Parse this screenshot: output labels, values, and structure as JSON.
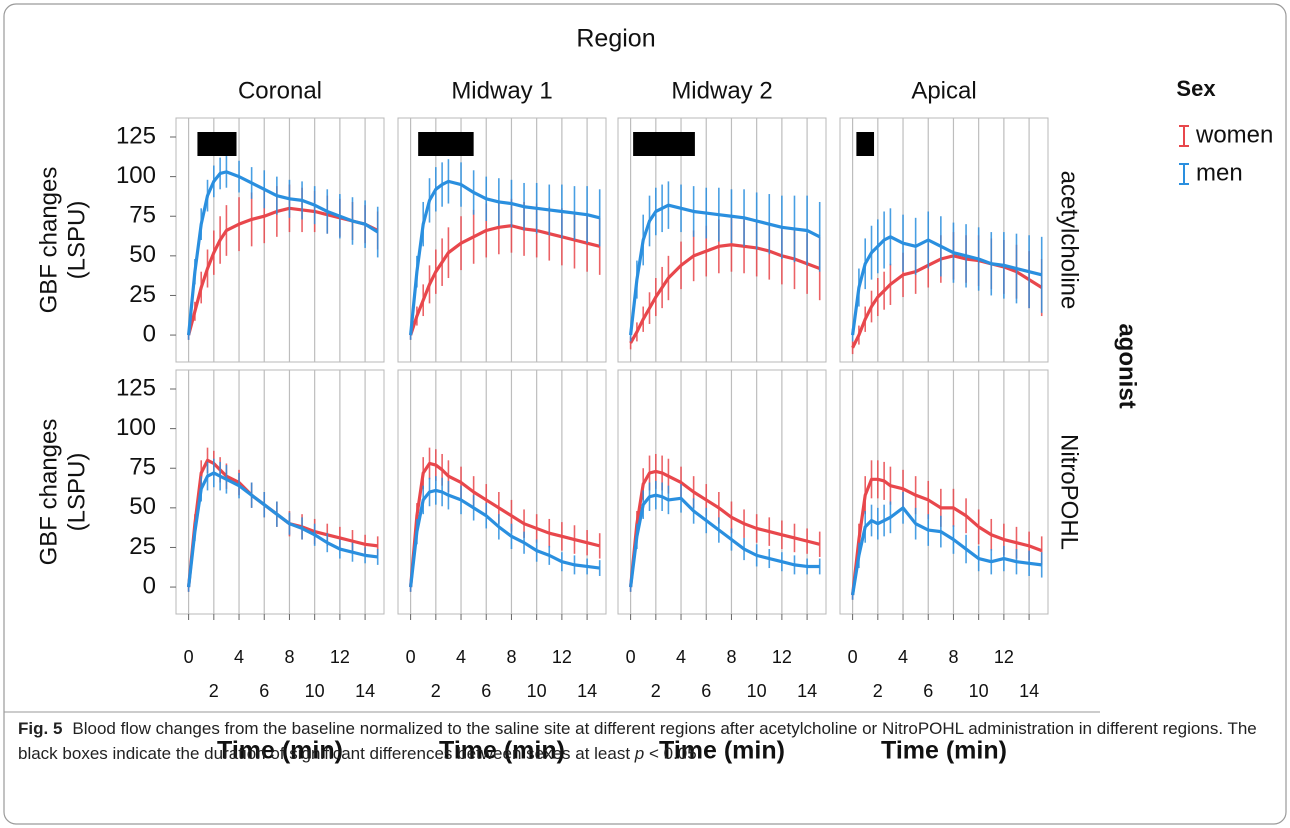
{
  "chart_data": {
    "type": "line",
    "title": "Region",
    "columns": [
      "Coronal",
      "Midway 1",
      "Midway 2",
      "Apical"
    ],
    "rows": [
      "acetylcholine",
      "NitroPOHL"
    ],
    "row_title": "agonist",
    "y_label": [
      "GBF changes",
      "(LSPU)"
    ],
    "x_label": "Time (min)",
    "legend_title": "Sex",
    "legend_position": "right",
    "grid": true,
    "x": [
      0,
      0.5,
      1,
      1.5,
      2,
      2.5,
      3,
      4,
      5,
      6,
      7,
      8,
      9,
      10,
      11,
      12,
      13,
      14,
      15
    ],
    "xlim": [
      -1,
      15.5
    ],
    "xticks": [
      0,
      2,
      4,
      6,
      8,
      10,
      12,
      14
    ],
    "ylim": [
      -17,
      137
    ],
    "yticks": [
      0,
      25,
      50,
      75,
      100,
      125
    ],
    "series": [
      {
        "name": "women",
        "color": "#e8474c"
      },
      {
        "name": "men",
        "color": "#2a8fdf"
      }
    ],
    "panels": [
      [
        {
          "significant": [
            0.7,
            3.8
          ],
          "series": [
            {
              "values": [
                0,
                15,
                30,
                42,
                52,
                60,
                66,
                70,
                73,
                75,
                78,
                80,
                79,
                78,
                76,
                74,
                72,
                70,
                66
              ],
              "errors": [
                3,
                6,
                10,
                12,
                14,
                15,
                16,
                17,
                17,
                17,
                16,
                15,
                14,
                13,
                12,
                12,
                12,
                12,
                12
              ]
            },
            {
              "values": [
                0,
                40,
                70,
                88,
                97,
                102,
                103,
                100,
                96,
                92,
                88,
                86,
                85,
                82,
                78,
                75,
                72,
                70,
                65
              ],
              "errors": [
                3,
                8,
                10,
                10,
                10,
                10,
                10,
                10,
                10,
                12,
                12,
                12,
                12,
                12,
                14,
                14,
                15,
                15,
                16
              ]
            }
          ]
        },
        {
          "significant": [
            0.6,
            5.0
          ],
          "series": [
            {
              "values": [
                0,
                12,
                22,
                32,
                40,
                46,
                52,
                58,
                62,
                66,
                68,
                69,
                67,
                66,
                64,
                62,
                60,
                58,
                56
              ],
              "errors": [
                3,
                6,
                10,
                12,
                14,
                15,
                16,
                17,
                17,
                17,
                17,
                17,
                17,
                17,
                17,
                18,
                18,
                18,
                18
              ]
            },
            {
              "values": [
                0,
                40,
                70,
                85,
                92,
                95,
                97,
                95,
                90,
                86,
                84,
                83,
                81,
                80,
                79,
                78,
                77,
                76,
                74
              ],
              "errors": [
                3,
                10,
                14,
                14,
                14,
                14,
                14,
                14,
                14,
                14,
                15,
                15,
                15,
                16,
                16,
                17,
                17,
                18,
                18
              ]
            }
          ]
        },
        {
          "significant": [
            0.2,
            5.1
          ],
          "series": [
            {
              "values": [
                -5,
                2,
                10,
                17,
                24,
                30,
                36,
                44,
                50,
                53,
                56,
                57,
                56,
                55,
                53,
                50,
                48,
                45,
                42
              ],
              "errors": [
                4,
                6,
                8,
                10,
                12,
                13,
                14,
                15,
                16,
                16,
                17,
                17,
                17,
                18,
                18,
                18,
                19,
                19,
                20
              ]
            },
            {
              "values": [
                0,
                35,
                60,
                72,
                78,
                80,
                82,
                80,
                78,
                77,
                76,
                75,
                74,
                72,
                70,
                68,
                67,
                66,
                62
              ],
              "errors": [
                4,
                12,
                16,
                16,
                15,
                15,
                15,
                15,
                16,
                16,
                17,
                17,
                18,
                18,
                19,
                20,
                21,
                22,
                22
              ]
            }
          ]
        },
        {
          "significant": [
            0.3,
            1.7
          ],
          "series": [
            {
              "values": [
                -8,
                0,
                10,
                18,
                24,
                28,
                32,
                38,
                40,
                44,
                48,
                50,
                48,
                47,
                45,
                43,
                40,
                35,
                30
              ],
              "errors": [
                4,
                6,
                8,
                10,
                12,
                12,
                13,
                14,
                14,
                14,
                15,
                15,
                15,
                16,
                16,
                17,
                17,
                18,
                18
              ]
            },
            {
              "values": [
                0,
                30,
                45,
                52,
                56,
                60,
                62,
                58,
                56,
                60,
                56,
                52,
                50,
                48,
                45,
                44,
                42,
                40,
                38
              ],
              "errors": [
                4,
                12,
                16,
                17,
                17,
                18,
                18,
                18,
                18,
                18,
                19,
                19,
                20,
                20,
                20,
                21,
                22,
                23,
                24
              ]
            }
          ]
        }
      ],
      [
        {
          "series": [
            {
              "values": [
                0,
                40,
                72,
                80,
                78,
                74,
                70,
                66,
                58,
                52,
                46,
                40,
                38,
                35,
                33,
                31,
                29,
                27,
                26
              ],
              "errors": [
                3,
                6,
                8,
                8,
                8,
                8,
                8,
                8,
                8,
                8,
                8,
                8,
                8,
                8,
                7,
                7,
                7,
                6,
                6
              ]
            },
            {
              "values": [
                0,
                35,
                62,
                70,
                72,
                70,
                68,
                64,
                58,
                52,
                46,
                40,
                37,
                33,
                28,
                24,
                22,
                20,
                19
              ],
              "errors": [
                3,
                6,
                8,
                9,
                9,
                9,
                9,
                8,
                8,
                8,
                8,
                7,
                7,
                7,
                6,
                6,
                6,
                5,
                5
              ]
            }
          ]
        },
        {
          "series": [
            {
              "values": [
                0,
                45,
                72,
                78,
                77,
                74,
                70,
                66,
                60,
                55,
                50,
                45,
                40,
                37,
                34,
                32,
                30,
                28,
                26
              ],
              "errors": [
                3,
                8,
                10,
                10,
                10,
                10,
                10,
                10,
                10,
                10,
                10,
                10,
                9,
                9,
                9,
                9,
                9,
                8,
                8
              ]
            },
            {
              "values": [
                0,
                35,
                55,
                60,
                61,
                60,
                58,
                55,
                50,
                45,
                38,
                32,
                28,
                23,
                20,
                16,
                14,
                13,
                12
              ],
              "errors": [
                3,
                8,
                9,
                9,
                9,
                9,
                9,
                9,
                8,
                8,
                8,
                8,
                7,
                7,
                6,
                6,
                6,
                5,
                5
              ]
            }
          ]
        },
        {
          "series": [
            {
              "values": [
                0,
                40,
                65,
                72,
                73,
                72,
                70,
                66,
                60,
                55,
                50,
                44,
                40,
                37,
                35,
                33,
                31,
                29,
                27
              ],
              "errors": [
                3,
                8,
                10,
                11,
                11,
                11,
                11,
                10,
                10,
                10,
                10,
                10,
                9,
                9,
                9,
                9,
                9,
                8,
                8
              ]
            },
            {
              "values": [
                0,
                32,
                52,
                57,
                58,
                57,
                55,
                56,
                48,
                42,
                36,
                30,
                24,
                20,
                18,
                16,
                14,
                13,
                13
              ],
              "errors": [
                3,
                8,
                9,
                9,
                9,
                9,
                9,
                9,
                8,
                8,
                8,
                7,
                7,
                7,
                6,
                6,
                6,
                5,
                5
              ]
            }
          ]
        },
        {
          "series": [
            {
              "values": [
                -5,
                30,
                58,
                68,
                68,
                67,
                64,
                62,
                58,
                55,
                50,
                50,
                45,
                38,
                33,
                30,
                28,
                26,
                23
              ],
              "errors": [
                3,
                10,
                12,
                12,
                12,
                12,
                12,
                12,
                12,
                12,
                12,
                12,
                11,
                11,
                10,
                10,
                10,
                9,
                9
              ]
            },
            {
              "values": [
                -5,
                20,
                38,
                42,
                40,
                42,
                44,
                50,
                40,
                36,
                35,
                30,
                24,
                18,
                16,
                18,
                16,
                15,
                14
              ],
              "errors": [
                3,
                8,
                10,
                10,
                10,
                10,
                10,
                10,
                10,
                10,
                10,
                9,
                9,
                8,
                8,
                8,
                8,
                8,
                8
              ]
            }
          ]
        }
      ]
    ]
  },
  "caption": {
    "label": "Fig. 5",
    "parts": [
      "Blood flow changes from the baseline normalized to the saline site at different regions after acetylcholine or NitroPOHL administration in different regions. The black boxes indicate the duration of significant differences between sexes at least ",
      "p",
      " < 0.05"
    ]
  }
}
